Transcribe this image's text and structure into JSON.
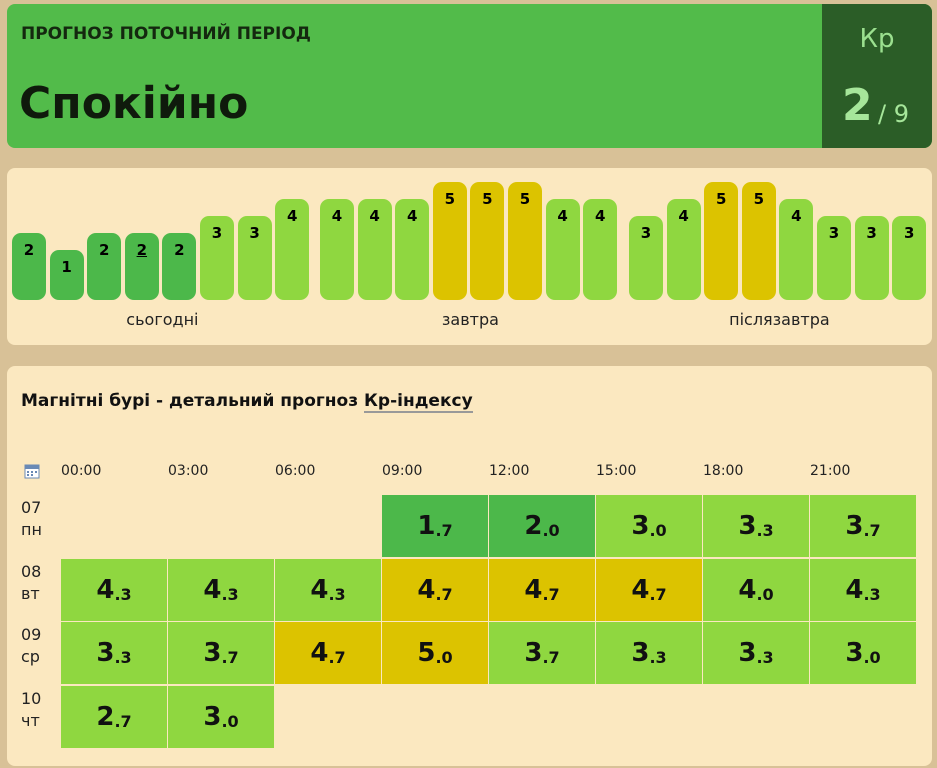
{
  "header": {
    "label": "ПРОГНОЗ ПОТОЧНИЙ ПЕРІОД",
    "status": "Спокійно",
    "index_name": "Кр",
    "index_value": "2",
    "index_max": "/ 9",
    "color": "#52bb4a",
    "side_color": "#2b5d27"
  },
  "forecast_strip": {
    "current_index": 3,
    "days": [
      {
        "label": "сьогодні",
        "bars": [
          {
            "value": 2,
            "color": "#4cb84a"
          },
          {
            "value": 1,
            "color": "#4cb84a"
          },
          {
            "value": 2,
            "color": "#4cb84a"
          },
          {
            "value": 2,
            "color": "#4cb84a"
          },
          {
            "value": 2,
            "color": "#4cb84a"
          },
          {
            "value": 3,
            "color": "#8fd740"
          },
          {
            "value": 3,
            "color": "#8fd740"
          },
          {
            "value": 4,
            "color": "#8fd740"
          }
        ]
      },
      {
        "label": "завтра",
        "bars": [
          {
            "value": 4,
            "color": "#8fd740"
          },
          {
            "value": 4,
            "color": "#8fd740"
          },
          {
            "value": 4,
            "color": "#8fd740"
          },
          {
            "value": 5,
            "color": "#dcc300"
          },
          {
            "value": 5,
            "color": "#dcc300"
          },
          {
            "value": 5,
            "color": "#dcc300"
          },
          {
            "value": 4,
            "color": "#8fd740"
          },
          {
            "value": 4,
            "color": "#8fd740"
          }
        ]
      },
      {
        "label": "післязавтра",
        "bars": [
          {
            "value": 3,
            "color": "#8fd740"
          },
          {
            "value": 4,
            "color": "#8fd740"
          },
          {
            "value": 5,
            "color": "#dcc300"
          },
          {
            "value": 5,
            "color": "#dcc300"
          },
          {
            "value": 4,
            "color": "#8fd740"
          },
          {
            "value": 3,
            "color": "#8fd740"
          },
          {
            "value": 3,
            "color": "#8fd740"
          },
          {
            "value": 3,
            "color": "#8fd740"
          }
        ]
      }
    ]
  },
  "detail": {
    "title": "Магнітні бурі - детальний прогноз",
    "title_link": "Кр-індексу",
    "times": [
      "00:00",
      "03:00",
      "06:00",
      "09:00",
      "12:00",
      "15:00",
      "18:00",
      "21:00"
    ],
    "rows": [
      {
        "date": "07",
        "weekday": "пн",
        "cells": [
          null,
          null,
          null,
          {
            "int": "1",
            "frac": ".7",
            "color": "#4cb84a"
          },
          {
            "int": "2",
            "frac": ".0",
            "color": "#4cb84a"
          },
          {
            "int": "3",
            "frac": ".0",
            "color": "#8fd740"
          },
          {
            "int": "3",
            "frac": ".3",
            "color": "#8fd740"
          },
          {
            "int": "3",
            "frac": ".7",
            "color": "#8fd740"
          }
        ]
      },
      {
        "date": "08",
        "weekday": "вт",
        "cells": [
          {
            "int": "4",
            "frac": ".3",
            "color": "#8fd740"
          },
          {
            "int": "4",
            "frac": ".3",
            "color": "#8fd740"
          },
          {
            "int": "4",
            "frac": ".3",
            "color": "#8fd740"
          },
          {
            "int": "4",
            "frac": ".7",
            "color": "#dcc300"
          },
          {
            "int": "4",
            "frac": ".7",
            "color": "#dcc300"
          },
          {
            "int": "4",
            "frac": ".7",
            "color": "#dcc300"
          },
          {
            "int": "4",
            "frac": ".0",
            "color": "#8fd740"
          },
          {
            "int": "4",
            "frac": ".3",
            "color": "#8fd740"
          }
        ]
      },
      {
        "date": "09",
        "weekday": "ср",
        "cells": [
          {
            "int": "3",
            "frac": ".3",
            "color": "#8fd740"
          },
          {
            "int": "3",
            "frac": ".7",
            "color": "#8fd740"
          },
          {
            "int": "4",
            "frac": ".7",
            "color": "#dcc300"
          },
          {
            "int": "5",
            "frac": ".0",
            "color": "#dcc300"
          },
          {
            "int": "3",
            "frac": ".7",
            "color": "#8fd740"
          },
          {
            "int": "3",
            "frac": ".3",
            "color": "#8fd740"
          },
          {
            "int": "3",
            "frac": ".3",
            "color": "#8fd740"
          },
          {
            "int": "3",
            "frac": ".0",
            "color": "#8fd740"
          }
        ]
      },
      {
        "date": "10",
        "weekday": "чт",
        "cells": [
          {
            "int": "2",
            "frac": ".7",
            "color": "#8fd740"
          },
          {
            "int": "3",
            "frac": ".0",
            "color": "#8fd740"
          },
          null,
          null,
          null,
          null,
          null,
          null
        ]
      }
    ]
  }
}
